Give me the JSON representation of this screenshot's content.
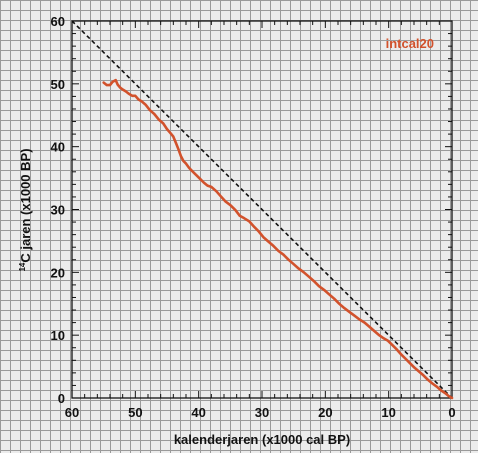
{
  "chart_data": {
    "type": "line",
    "xlabel": "kalenderjaren (x1000 cal BP)",
    "ylabel_superscript": "14",
    "ylabel": "C jaren (x1000 BP)",
    "xlim": [
      60,
      0
    ],
    "ylim": [
      0,
      60
    ],
    "x_ticks": [
      60,
      50,
      40,
      30,
      20,
      10,
      0
    ],
    "y_ticks": [
      0,
      10,
      20,
      30,
      40,
      50,
      60
    ],
    "minor_tick_step": 2,
    "grid": true,
    "series": [
      {
        "name": "intcal20",
        "color": "#d2522c",
        "x": [
          55,
          54.5,
          54,
          53.6,
          53.1,
          52.8,
          52.4,
          52,
          51.5,
          51,
          50.5,
          50,
          49.5,
          49,
          48.4,
          47.7,
          47,
          46.3,
          45.6,
          45,
          44.5,
          44,
          43.6,
          43.2,
          42.8,
          42.4,
          42,
          41.5,
          41,
          40.4,
          39.8,
          39.2,
          38.6,
          38,
          37.2,
          36.5,
          35.8,
          35,
          34.2,
          33.5,
          32.8,
          32,
          31.2,
          30.5,
          29.8,
          29,
          28.2,
          27.4,
          26.6,
          25.8,
          25,
          24.2,
          23.4,
          22.6,
          21.8,
          21,
          20.2,
          19.4,
          18.6,
          17.8,
          17,
          16.2,
          15.4,
          14.6,
          13.8,
          13,
          12.2,
          11.5,
          10.8,
          10.1,
          9.4,
          8.7,
          8,
          7.3,
          6.6,
          5.9,
          5.2,
          4.5,
          3.8,
          3.1,
          2.4,
          1.7,
          1.1,
          0.5,
          0
        ],
        "values": [
          50.2,
          49.8,
          49.8,
          50.3,
          50.6,
          49.9,
          49.4,
          49.1,
          48.8,
          48.4,
          48.1,
          48.1,
          47.5,
          47.2,
          46.7,
          45.8,
          45.2,
          44.3,
          43.7,
          42.8,
          42.2,
          41.6,
          40.6,
          39.6,
          38.5,
          37.7,
          37.3,
          36.6,
          36.1,
          35.5,
          34.9,
          34.3,
          33.8,
          33.6,
          32.9,
          32.1,
          31.3,
          30.7,
          29.9,
          29.0,
          28.6,
          28.1,
          27.2,
          26.5,
          25.6,
          24.9,
          24.2,
          23.4,
          22.8,
          22.0,
          21.3,
          20.6,
          20.0,
          19.3,
          18.6,
          17.8,
          17.2,
          16.5,
          15.8,
          15.0,
          14.3,
          13.7,
          13.1,
          12.5,
          12.0,
          11.3,
          10.6,
          10.0,
          9.5,
          9.1,
          8.4,
          7.7,
          6.9,
          6.2,
          5.5,
          4.8,
          4.2,
          3.6,
          2.9,
          2.3,
          1.8,
          1.2,
          0.8,
          0.3,
          0
        ]
      }
    ],
    "reference_line": {
      "style": "dashed",
      "color": "#111111",
      "x": [
        60,
        0
      ],
      "values": [
        60,
        0
      ]
    }
  }
}
